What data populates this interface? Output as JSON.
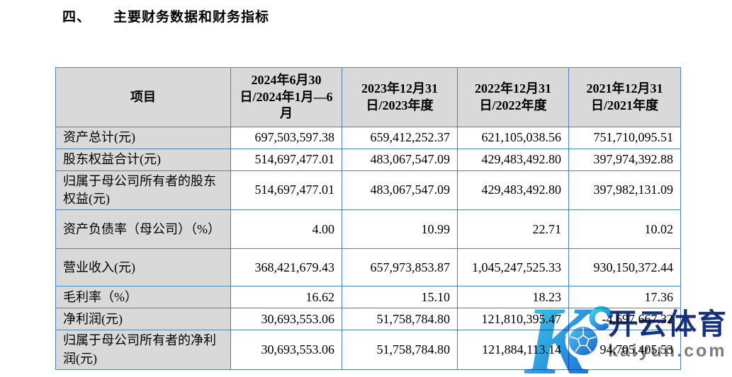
{
  "page": {
    "section_number": "四、",
    "section_title": "主要财务数据和财务指标"
  },
  "table": {
    "headers": [
      "项目",
      "2024年6月30日/2024年1月—6月",
      "2023年12月31日/2023年度",
      "2022年12月31日/2022年度",
      "2021年12月31日/2021年度"
    ],
    "rows": [
      {
        "label": "资产总计(元)",
        "values": [
          "697,503,597.38",
          "659,412,252.37",
          "621,105,038.56",
          "751,710,095.51"
        ]
      },
      {
        "label": "股东权益合计(元)",
        "values": [
          "514,697,477.01",
          "483,067,547.09",
          "429,483,492.80",
          "397,974,392.88"
        ]
      },
      {
        "label": "归属于母公司所有者的股东权益(元)",
        "values": [
          "514,697,477.01",
          "483,067,547.09",
          "429,483,492.80",
          "397,982,131.09"
        ]
      },
      {
        "label": "资产负债率（母公司）（%）",
        "values": [
          "4.00",
          "10.99",
          "22.71",
          "10.02"
        ]
      },
      {
        "label": "营业收入(元)",
        "values": [
          "368,421,679.43",
          "657,973,853.87",
          "1,045,247,525.33",
          "930,150,372.44"
        ]
      },
      {
        "label": "毛利率（%）",
        "values": [
          "16.62",
          "15.10",
          "18.23",
          "17.36"
        ]
      },
      {
        "label": "净利润(元)",
        "values": [
          "30,693,553.06",
          "51,758,784.80",
          "121,810,395.47",
          "-4,697,667.32"
        ]
      },
      {
        "label": "归属于母公司所有者的净利润(元)",
        "values": [
          "30,693,553.06",
          "51,758,784.80",
          "121,884,113.14",
          "94,705,405.53"
        ]
      }
    ]
  },
  "watermark": {
    "letter": "K",
    "brand": "开云体育",
    "domain": "kaiyun.com",
    "icons": {
      "logo": "kaiyun-k-logo-icon",
      "ball": "soccer-ball-icon"
    },
    "colors": {
      "table_border": "#4f81bd",
      "header_background": "#d9d9d9",
      "brand_navy": "#17317c",
      "domain_gray": "#7d7d7d",
      "k_gradient_start": "#3fd4e6",
      "k_gradient_end": "#1b64d8"
    }
  }
}
